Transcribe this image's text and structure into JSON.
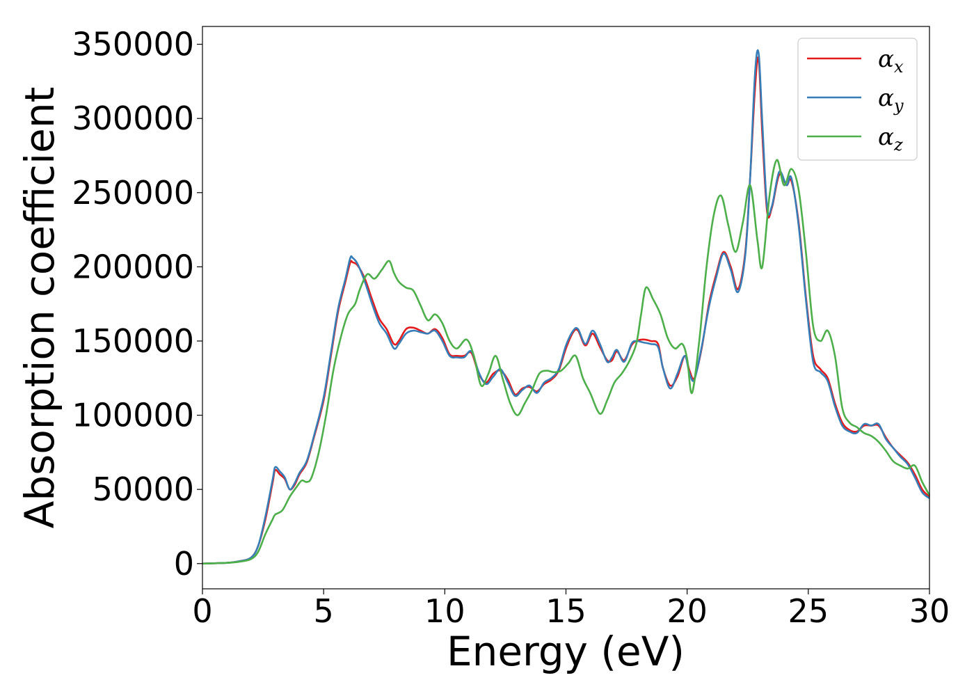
{
  "chart_data": {
    "type": "line",
    "title": "",
    "xlabel": "Energy (eV)",
    "ylabel": "Absorption coefficient",
    "xlim": [
      0,
      30
    ],
    "ylim": [
      -17000,
      362000
    ],
    "xticks": [
      0,
      5,
      10,
      15,
      20,
      25,
      30
    ],
    "yticks": [
      0,
      50000,
      100000,
      150000,
      200000,
      250000,
      300000,
      350000
    ],
    "grid": false,
    "legend_position": "top-right",
    "series": [
      {
        "name": "α_x",
        "symbol": "α",
        "subscript": "x",
        "color": "#e41a1c",
        "x": [
          0,
          1,
          1.5,
          2,
          2.3,
          2.6,
          2.9,
          3.0,
          3.2,
          3.4,
          3.6,
          3.8,
          4.0,
          4.3,
          4.6,
          5.0,
          5.3,
          5.6,
          5.9,
          6.1,
          6.2,
          6.4,
          6.7,
          7.0,
          7.3,
          7.6,
          7.9,
          8.1,
          8.4,
          8.7,
          9.0,
          9.3,
          9.6,
          9.9,
          10.2,
          10.5,
          10.8,
          11.1,
          11.4,
          11.7,
          12.0,
          12.3,
          12.6,
          12.9,
          13.2,
          13.5,
          13.8,
          14.1,
          14.4,
          14.7,
          15.0,
          15.3,
          15.5,
          15.8,
          16.1,
          16.4,
          16.7,
          16.9,
          17.1,
          17.4,
          17.7,
          17.9,
          18.2,
          18.5,
          18.8,
          19.0,
          19.3,
          19.6,
          19.9,
          20.1,
          20.3,
          20.6,
          20.9,
          21.2,
          21.5,
          21.8,
          22.1,
          22.4,
          22.6,
          22.8,
          22.95,
          23.1,
          23.3,
          23.5,
          23.8,
          24.1,
          24.3,
          24.6,
          24.9,
          25.2,
          25.5,
          25.8,
          26.1,
          26.4,
          26.7,
          27.0,
          27.3,
          27.6,
          27.9,
          28.2,
          28.5,
          28.8,
          29.1,
          29.4,
          29.7,
          30.0
        ],
        "y": [
          0,
          500,
          1500,
          4000,
          12000,
          30000,
          55000,
          63000,
          60000,
          57000,
          50000,
          53000,
          60000,
          68000,
          85000,
          110000,
          140000,
          170000,
          190000,
          203000,
          203000,
          201000,
          192000,
          178000,
          165000,
          158000,
          148000,
          150000,
          158000,
          159000,
          157000,
          155000,
          158000,
          152000,
          141000,
          140000,
          140000,
          142000,
          128000,
          122000,
          128000,
          130000,
          124000,
          114000,
          118000,
          119000,
          116000,
          121000,
          124000,
          130000,
          145000,
          156000,
          157000,
          147000,
          155000,
          146000,
          137000,
          137000,
          143000,
          137000,
          147000,
          150000,
          151000,
          150000,
          148000,
          132000,
          120000,
          126000,
          140000,
          130000,
          125000,
          145000,
          175000,
          195000,
          210000,
          200000,
          185000,
          210000,
          260000,
          320000,
          340000,
          290000,
          237000,
          240000,
          262000,
          255000,
          258000,
          230000,
          180000,
          140000,
          131000,
          125000,
          108000,
          95000,
          90000,
          89000,
          93000,
          93000,
          93000,
          85000,
          78000,
          73000,
          68000,
          60000,
          50000,
          45000
        ]
      },
      {
        "name": "α_y",
        "symbol": "α",
        "subscript": "y",
        "color": "#377eb8",
        "x": [
          0,
          1,
          1.5,
          2,
          2.3,
          2.6,
          2.9,
          3.0,
          3.2,
          3.4,
          3.6,
          3.8,
          4.0,
          4.3,
          4.6,
          5.0,
          5.3,
          5.6,
          5.9,
          6.1,
          6.2,
          6.4,
          6.7,
          7.0,
          7.3,
          7.6,
          7.9,
          8.1,
          8.4,
          8.7,
          9.0,
          9.3,
          9.6,
          9.9,
          10.2,
          10.5,
          10.8,
          11.1,
          11.4,
          11.7,
          12.0,
          12.3,
          12.6,
          12.9,
          13.2,
          13.5,
          13.8,
          14.1,
          14.4,
          14.7,
          15.0,
          15.3,
          15.5,
          15.8,
          16.1,
          16.4,
          16.7,
          16.9,
          17.1,
          17.4,
          17.7,
          17.9,
          18.2,
          18.5,
          18.8,
          19.0,
          19.3,
          19.6,
          19.9,
          20.1,
          20.3,
          20.6,
          20.9,
          21.2,
          21.5,
          21.8,
          22.1,
          22.4,
          22.6,
          22.8,
          22.95,
          23.1,
          23.3,
          23.5,
          23.8,
          24.1,
          24.3,
          24.6,
          24.9,
          25.2,
          25.5,
          25.8,
          26.1,
          26.4,
          26.7,
          27.0,
          27.3,
          27.6,
          27.9,
          28.2,
          28.5,
          28.8,
          29.1,
          29.4,
          29.7,
          30.0
        ],
        "y": [
          0,
          500,
          1500,
          4000,
          12000,
          32000,
          57000,
          65000,
          62000,
          58000,
          50000,
          54000,
          61000,
          69000,
          86000,
          112000,
          142000,
          172000,
          192000,
          206000,
          206000,
          202000,
          190000,
          175000,
          162000,
          155000,
          145000,
          148000,
          155000,
          157000,
          156000,
          155000,
          157000,
          150000,
          140000,
          139000,
          139000,
          143000,
          129000,
          121000,
          126000,
          131000,
          122000,
          113000,
          117000,
          120000,
          115000,
          122000,
          125000,
          131000,
          147000,
          157000,
          158000,
          148000,
          157000,
          148000,
          136000,
          139000,
          144000,
          136000,
          148000,
          150000,
          149000,
          148000,
          146000,
          132000,
          118000,
          128000,
          140000,
          128000,
          124000,
          146000,
          173000,
          193000,
          209000,
          198000,
          183000,
          208000,
          260000,
          330000,
          344000,
          298000,
          240000,
          241000,
          264000,
          255000,
          260000,
          228000,
          178000,
          136000,
          129000,
          123000,
          106000,
          93000,
          89000,
          88000,
          94000,
          93000,
          94000,
          84000,
          78000,
          72000,
          67000,
          58000,
          48000,
          44000
        ]
      },
      {
        "name": "α_z",
        "symbol": "α",
        "subscript": "z",
        "color": "#4daf4a",
        "x": [
          0,
          1,
          1.5,
          2,
          2.3,
          2.6,
          2.9,
          3.0,
          3.3,
          3.6,
          3.9,
          4.1,
          4.3,
          4.5,
          4.8,
          5.1,
          5.4,
          5.7,
          6.0,
          6.3,
          6.5,
          6.8,
          7.1,
          7.4,
          7.7,
          7.9,
          8.1,
          8.4,
          8.7,
          9.0,
          9.3,
          9.6,
          9.9,
          10.2,
          10.5,
          10.9,
          11.2,
          11.5,
          11.8,
          12.1,
          12.4,
          12.7,
          13.0,
          13.3,
          13.6,
          13.9,
          14.2,
          14.5,
          14.8,
          15.1,
          15.4,
          15.7,
          16.0,
          16.4,
          16.7,
          17.0,
          17.3,
          17.6,
          17.9,
          18.1,
          18.3,
          18.6,
          18.9,
          19.2,
          19.5,
          19.8,
          20.0,
          20.2,
          20.5,
          20.8,
          21.1,
          21.4,
          21.7,
          22.0,
          22.3,
          22.6,
          22.9,
          23.1,
          23.4,
          23.7,
          24.0,
          24.3,
          24.6,
          24.9,
          25.2,
          25.5,
          25.8,
          26.1,
          26.4,
          26.7,
          27.0,
          27.3,
          27.6,
          27.9,
          28.2,
          28.5,
          28.8,
          29.1,
          29.4,
          29.7,
          30.0
        ],
        "y": [
          0,
          500,
          1200,
          3000,
          8000,
          20000,
          30000,
          33000,
          36000,
          45000,
          52000,
          56000,
          55000,
          58000,
          75000,
          100000,
          130000,
          152000,
          168000,
          175000,
          185000,
          195000,
          192000,
          198000,
          204000,
          196000,
          190000,
          186000,
          184000,
          174000,
          164000,
          168000,
          162000,
          150000,
          145000,
          151000,
          140000,
          120000,
          128000,
          140000,
          124000,
          108000,
          100000,
          108000,
          117000,
          128000,
          130000,
          129000,
          130000,
          135000,
          140000,
          125000,
          115000,
          101000,
          110000,
          122000,
          128000,
          136000,
          148000,
          168000,
          186000,
          178000,
          168000,
          152000,
          145000,
          148000,
          138000,
          115000,
          150000,
          200000,
          235000,
          248000,
          228000,
          210000,
          230000,
          255000,
          218000,
          200000,
          248000,
          272000,
          255000,
          266000,
          252000,
          210000,
          160000,
          150000,
          157000,
          140000,
          105000,
          95000,
          92000,
          88000,
          86000,
          82000,
          76000,
          69000,
          66000,
          64000,
          66000,
          55000,
          46000
        ]
      }
    ]
  }
}
